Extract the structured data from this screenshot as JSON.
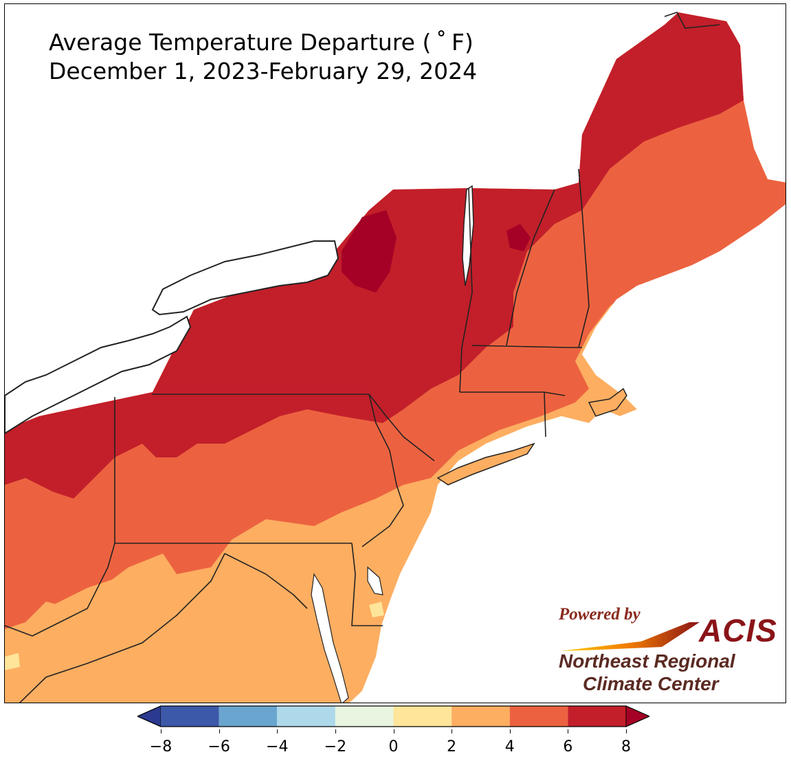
{
  "title": {
    "line1": "Average Temperature Departure ( ˚ F)",
    "line2": "December 1, 2023-February 29, 2024"
  },
  "logo": {
    "powered_by": "Powered by",
    "acis": "ACIS",
    "line1": "Northeast Regional",
    "line2": "Climate Center"
  },
  "legend": {
    "ticks": [
      "−8",
      "−6",
      "−4",
      "−2",
      "0",
      "2",
      "4",
      "6",
      "8"
    ],
    "bins": [
      {
        "range": "-8 to -6",
        "color": "#3c58a8"
      },
      {
        "range": "-6 to -4",
        "color": "#6aa5cf"
      },
      {
        "range": "-4 to -2",
        "color": "#aed9ea"
      },
      {
        "range": "-2 to 0",
        "color": "#e8f5e0"
      },
      {
        "range": "0 to 2",
        "color": "#fee59a"
      },
      {
        "range": "2 to 4",
        "color": "#fdae61"
      },
      {
        "range": "4 to 6",
        "color": "#ec6240"
      },
      {
        "range": "6 to 8",
        "color": "#c21f2a"
      }
    ],
    "under_color": "#2b3a90",
    "over_color": "#a50026"
  },
  "map": {
    "region": "Northeast United States",
    "colors": {
      "extreme": "#a50026",
      "very_high": "#c21f2a",
      "high": "#ec6240",
      "moderate": "#fdae61",
      "low": "#fee59a",
      "lake": "#ffffff",
      "ocean": "#ffffff",
      "border": "#222222"
    }
  }
}
